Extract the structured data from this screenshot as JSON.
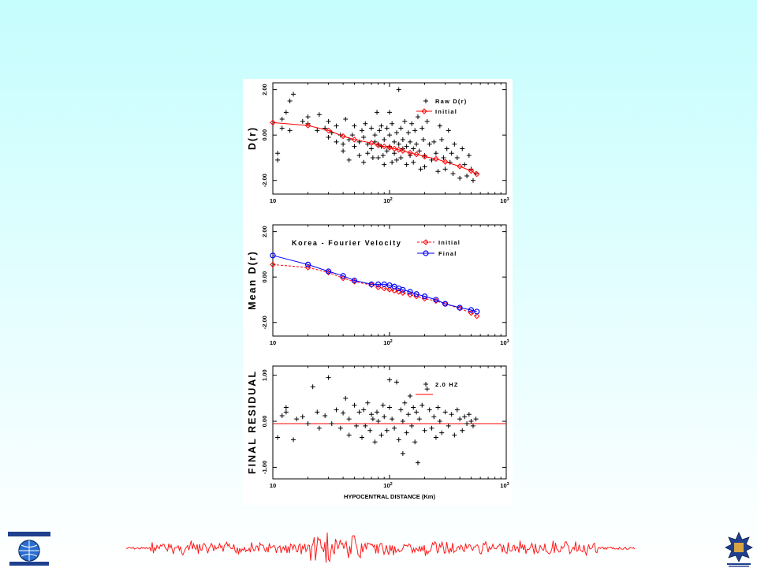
{
  "chart_data": [
    {
      "type": "scatter",
      "panel": "top",
      "ylabel": "D(r)",
      "xscale": "log",
      "xlim": [
        10,
        1000
      ],
      "ylim": [
        -2.6,
        2.3
      ],
      "yticks": [
        "2.00",
        "0.00",
        "-2.00"
      ],
      "xtick_labels": [
        "10",
        "2",
        "3"
      ],
      "legend": {
        "placement": "top-right",
        "entries": [
          "Raw D(r)",
          "Initial"
        ]
      },
      "series": [
        {
          "name": "Raw D(r)",
          "marker": "plus",
          "color": "#000000",
          "x": [
            11,
            11,
            12,
            12,
            13,
            14,
            14,
            15,
            18,
            20,
            20,
            24,
            25,
            28,
            30,
            30,
            32,
            35,
            35,
            38,
            40,
            40,
            42,
            45,
            45,
            48,
            50,
            50,
            55,
            55,
            58,
            60,
            60,
            62,
            65,
            65,
            70,
            70,
            72,
            75,
            75,
            78,
            80,
            80,
            82,
            85,
            85,
            88,
            90,
            90,
            95,
            95,
            100,
            100,
            100,
            105,
            105,
            110,
            110,
            115,
            115,
            120,
            120,
            125,
            125,
            130,
            130,
            135,
            140,
            140,
            145,
            150,
            150,
            155,
            160,
            160,
            165,
            170,
            175,
            180,
            185,
            190,
            195,
            200,
            200,
            210,
            220,
            230,
            240,
            250,
            260,
            270,
            280,
            290,
            300,
            310,
            320,
            330,
            340,
            350,
            360,
            380,
            400,
            420,
            440,
            460,
            480,
            500,
            520,
            550
          ],
          "y": [
            -0.8,
            -1.1,
            0.7,
            0.3,
            1.0,
            1.5,
            0.2,
            1.8,
            0.6,
            0.8,
            0.5,
            0.2,
            0.9,
            0.3,
            0.6,
            -0.1,
            0.1,
            -0.3,
            0.4,
            0.0,
            -0.4,
            -0.7,
            0.7,
            -0.2,
            -1.1,
            0.0,
            -0.5,
            0.4,
            -0.3,
            -0.9,
            0.2,
            -0.1,
            -1.2,
            0.5,
            -0.4,
            -0.8,
            0.3,
            -0.6,
            -1.0,
            0.0,
            -0.3,
            1.0,
            -0.4,
            -1.0,
            0.2,
            -0.5,
            0.4,
            -0.9,
            -0.2,
            -1.3,
            0.3,
            -0.7,
            1.0,
            0.0,
            -0.5,
            -1.2,
            0.5,
            -0.3,
            -0.8,
            0.1,
            -1.1,
            2.0,
            -0.4,
            0.3,
            -1.0,
            -0.2,
            -0.6,
            0.6,
            -0.5,
            -1.3,
            0.1,
            -0.3,
            -0.9,
            0.5,
            -0.6,
            -1.2,
            0.2,
            -0.4,
            0.8,
            -0.7,
            -1.5,
            0.3,
            -0.2,
            -0.9,
            -1.4,
            0.6,
            -0.4,
            -1.1,
            -0.3,
            -0.8,
            -1.6,
            0.4,
            -0.2,
            -1.0,
            -1.5,
            -0.6,
            0.2,
            -1.2,
            -0.8,
            -1.7,
            -0.4,
            -1.0,
            -1.9,
            -0.6,
            -1.3,
            -1.8,
            -0.9,
            -1.5,
            -2.0,
            -1.7
          ]
        },
        {
          "name": "Initial",
          "marker": "diamond",
          "color": "#ff0000",
          "x": [
            10,
            20,
            30,
            40,
            50,
            70,
            80,
            90,
            100,
            110,
            120,
            130,
            150,
            170,
            200,
            250,
            300,
            400,
            500,
            560
          ],
          "y": [
            0.55,
            0.42,
            0.2,
            -0.05,
            -0.2,
            -0.35,
            -0.45,
            -0.5,
            -0.55,
            -0.6,
            -0.65,
            -0.7,
            -0.78,
            -0.85,
            -0.95,
            -1.05,
            -1.18,
            -1.38,
            -1.58,
            -1.72
          ]
        }
      ]
    },
    {
      "type": "line",
      "panel": "middle",
      "title": "Korea - Fourier Velocity",
      "ylabel": "Mean D(r)",
      "xscale": "log",
      "xlim": [
        10,
        1000
      ],
      "ylim": [
        -2.6,
        2.3
      ],
      "yticks": [
        "2.00",
        "0.00",
        "-2.00"
      ],
      "xtick_labels": [
        "10",
        "2",
        "3"
      ],
      "legend": {
        "placement": "top-right",
        "entries": [
          "Initial",
          "Final"
        ]
      },
      "series": [
        {
          "name": "Initial",
          "marker": "diamond",
          "linestyle": "dashed",
          "color": "#ff0000",
          "x": [
            10,
            20,
            30,
            40,
            50,
            70,
            80,
            90,
            100,
            110,
            120,
            130,
            150,
            170,
            200,
            250,
            300,
            400,
            500,
            560
          ],
          "y": [
            0.55,
            0.42,
            0.2,
            -0.05,
            -0.2,
            -0.35,
            -0.45,
            -0.5,
            -0.55,
            -0.6,
            -0.65,
            -0.7,
            -0.78,
            -0.85,
            -0.95,
            -1.05,
            -1.18,
            -1.38,
            -1.58,
            -1.72
          ]
        },
        {
          "name": "Final",
          "marker": "circle",
          "linestyle": "solid",
          "color": "#0000ff",
          "x": [
            10,
            20,
            30,
            40,
            50,
            70,
            80,
            90,
            100,
            110,
            120,
            130,
            150,
            170,
            200,
            250,
            300,
            400,
            500,
            560
          ],
          "y": [
            0.95,
            0.55,
            0.25,
            0.05,
            -0.15,
            -0.32,
            -0.32,
            -0.32,
            -0.36,
            -0.42,
            -0.5,
            -0.56,
            -0.65,
            -0.75,
            -0.85,
            -1.0,
            -1.18,
            -1.35,
            -1.45,
            -1.52
          ]
        }
      ]
    },
    {
      "type": "scatter",
      "panel": "bottom",
      "ylabel": "FINAL RESIDUAL",
      "xlabel": "HYPOCENTRAL DISTANCE (Km)",
      "xscale": "log",
      "xlim": [
        10,
        1000
      ],
      "ylim": [
        -1.25,
        1.2
      ],
      "yticks": [
        "1.00",
        "0.00",
        "-1.00"
      ],
      "xtick_labels": [
        "10",
        "2",
        "3"
      ],
      "legend": {
        "placement": "top-right",
        "entries": [
          "2.0 HZ"
        ]
      },
      "reference_line": {
        "y": -0.05,
        "color": "#ff0000"
      },
      "series": [
        {
          "name": "2.0 HZ",
          "marker": "plus",
          "color": "#000000",
          "x": [
            11,
            12,
            13,
            13,
            15,
            16,
            18,
            20,
            22,
            24,
            25,
            28,
            30,
            32,
            35,
            38,
            40,
            42,
            45,
            45,
            50,
            52,
            55,
            58,
            60,
            62,
            65,
            68,
            70,
            72,
            75,
            78,
            80,
            85,
            88,
            90,
            95,
            100,
            100,
            105,
            110,
            115,
            120,
            125,
            130,
            130,
            135,
            140,
            145,
            150,
            155,
            160,
            165,
            170,
            175,
            180,
            190,
            200,
            210,
            220,
            230,
            240,
            250,
            260,
            270,
            280,
            300,
            320,
            340,
            360,
            380,
            400,
            420,
            440,
            460,
            480,
            500,
            520,
            550
          ],
          "y": [
            -0.35,
            0.12,
            0.3,
            0.2,
            -0.4,
            0.05,
            0.1,
            -0.05,
            0.75,
            0.2,
            -0.15,
            0.12,
            0.95,
            -0.05,
            0.25,
            -0.15,
            0.18,
            0.5,
            -0.3,
            0.05,
            0.35,
            -0.1,
            0.2,
            -0.35,
            0.25,
            -0.1,
            0.4,
            -0.2,
            0.15,
            0.05,
            -0.45,
            0.2,
            0.0,
            -0.3,
            0.35,
            0.1,
            -0.2,
            0.9,
            0.3,
            0.05,
            -0.15,
            0.85,
            -0.4,
            0.25,
            0.0,
            -0.7,
            0.4,
            -0.25,
            0.15,
            0.55,
            -0.1,
            0.3,
            -0.45,
            0.2,
            -0.9,
            0.05,
            0.35,
            -0.2,
            0.7,
            0.25,
            -0.15,
            0.1,
            -0.35,
            0.3,
            0.0,
            -0.25,
            0.2,
            -0.1,
            0.15,
            -0.3,
            0.25,
            0.05,
            -0.2,
            0.1,
            -0.05,
            0.15,
            0.0,
            -0.1,
            0.05
          ]
        }
      ]
    }
  ]
}
